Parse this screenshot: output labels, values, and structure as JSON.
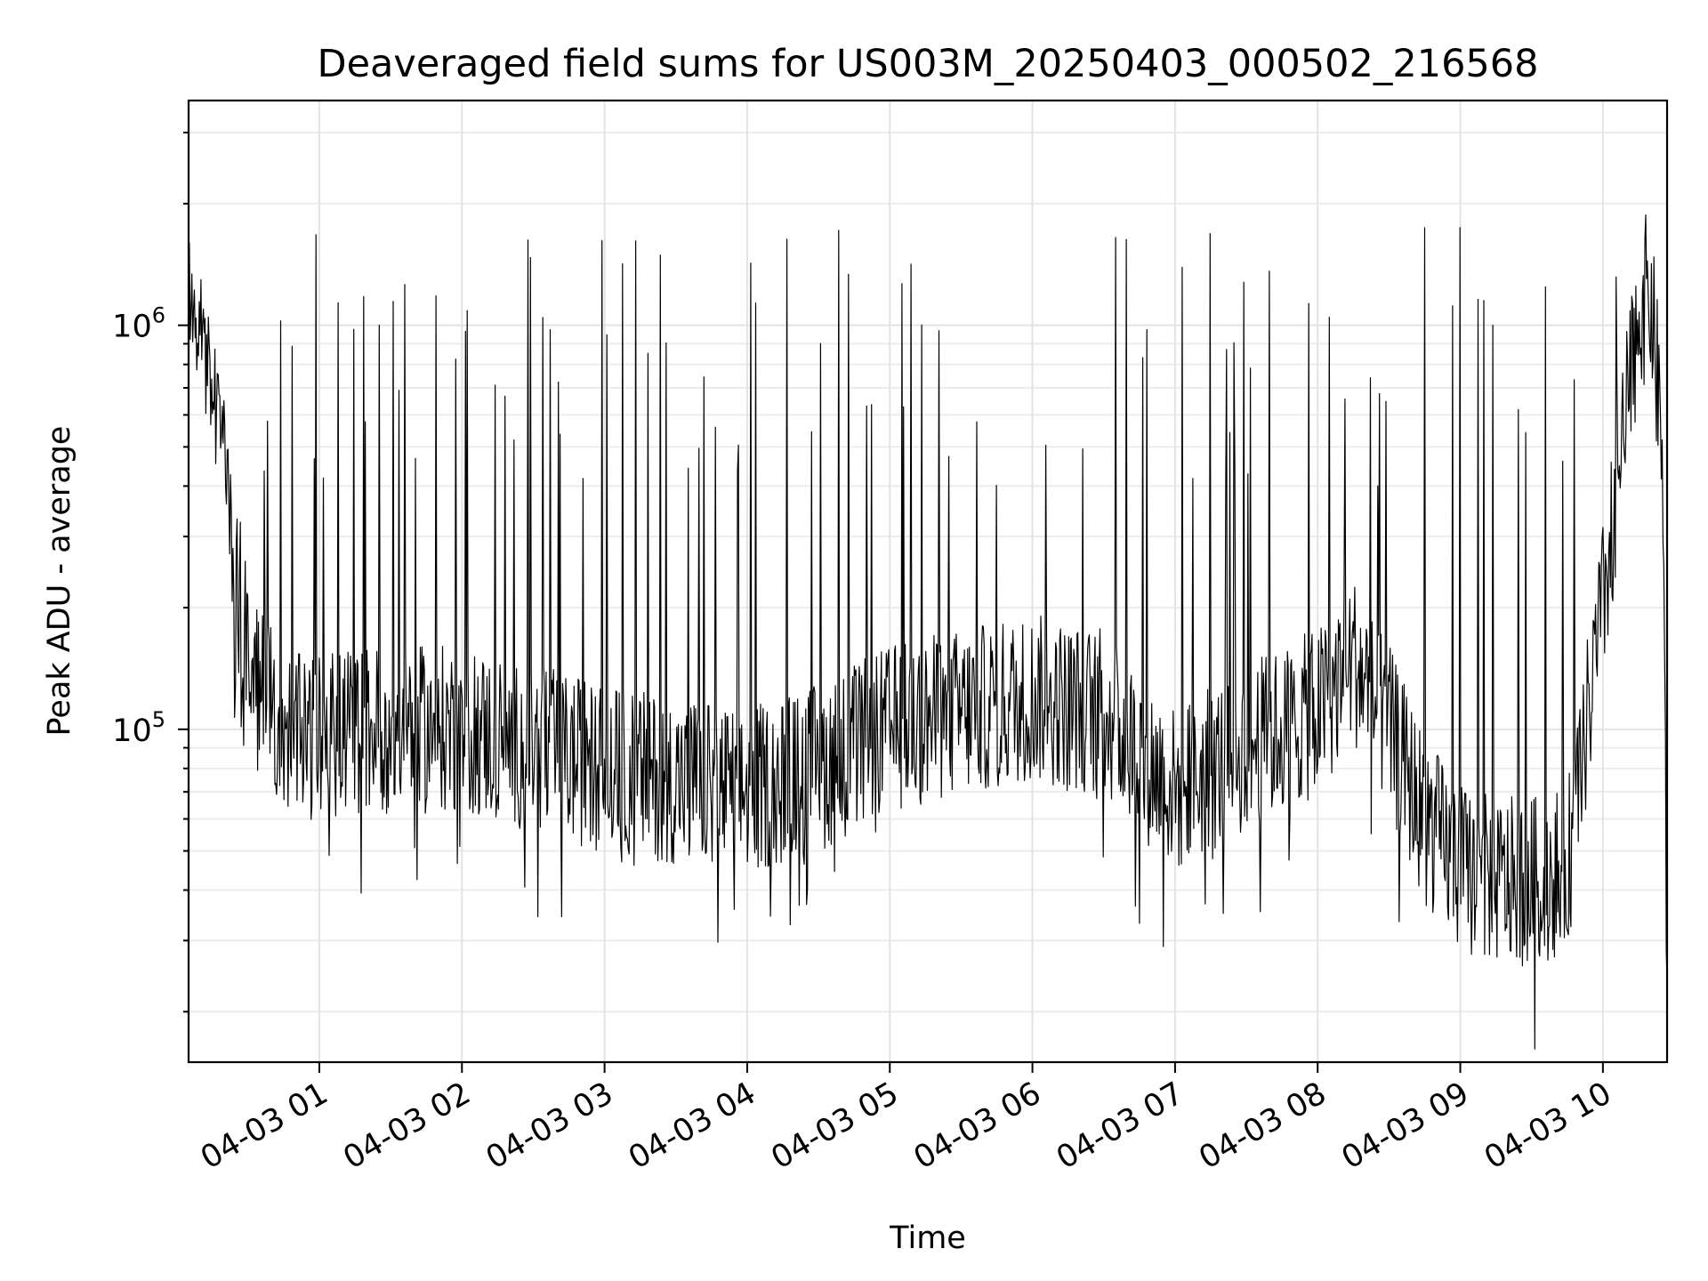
{
  "chart_data": {
    "type": "line",
    "title": "Deaveraged field sums for US003M_20250403_000502_216568",
    "xlabel": "Time",
    "ylabel": "Peak ADU - average",
    "yscale": "log",
    "grid": "on (major and minor)",
    "legend": "none",
    "line_color": "#000000",
    "xlim": [
      "2025-04-03 00:05",
      "2025-04-03 10:27"
    ],
    "ylim": [
      15000,
      3600000
    ],
    "x_tick_labels": [
      "04-03 01",
      "04-03 02",
      "04-03 03",
      "04-03 04",
      "04-03 05",
      "04-03 06",
      "04-03 07",
      "04-03 08",
      "04-03 09",
      "04-03 10"
    ],
    "x_tick_values": [
      "2025-04-03 01:00",
      "2025-04-03 02:00",
      "2025-04-03 03:00",
      "2025-04-03 04:00",
      "2025-04-03 05:00",
      "2025-04-03 06:00",
      "2025-04-03 07:00",
      "2025-04-03 08:00",
      "2025-04-03 09:00",
      "2025-04-03 10:00"
    ],
    "y_ticks": [
      {
        "value": 100000,
        "base": "10",
        "exp": "5"
      },
      {
        "value": 1000000,
        "base": "10",
        "exp": "6"
      }
    ],
    "series": [
      {
        "x": [
          "2025-04-03 00:05",
          "2025-04-03 00:10",
          "2025-04-03 00:15",
          "2025-04-03 00:20",
          "2025-04-03 00:25",
          "2025-04-03 00:30",
          "2025-04-03 00:40",
          "2025-04-03 00:50",
          "2025-04-03 01:00",
          "2025-04-03 01:15",
          "2025-04-03 01:30",
          "2025-04-03 01:45",
          "2025-04-03 02:00",
          "2025-04-03 02:30",
          "2025-04-03 03:00",
          "2025-04-03 03:30",
          "2025-04-03 04:00",
          "2025-04-03 04:30",
          "2025-04-03 05:00",
          "2025-04-03 05:30",
          "2025-04-03 06:00",
          "2025-04-03 06:30",
          "2025-04-03 07:00",
          "2025-04-03 07:30",
          "2025-04-03 08:00",
          "2025-04-03 08:15",
          "2025-04-03 08:30",
          "2025-04-03 08:45",
          "2025-04-03 09:00",
          "2025-04-03 09:15",
          "2025-04-03 09:30",
          "2025-04-03 09:45",
          "2025-04-03 10:00",
          "2025-04-03 10:10",
          "2025-04-03 10:15",
          "2025-04-03 10:20",
          "2025-04-03 10:25",
          "2025-04-03 10:27"
        ],
        "values": [
          1300000,
          1000000,
          700000,
          500000,
          250000,
          150000,
          110000,
          95000,
          95000,
          100000,
          100000,
          100000,
          100000,
          90000,
          80000,
          75000,
          70000,
          80000,
          100000,
          110000,
          120000,
          110000,
          70000,
          90000,
          110000,
          150000,
          100000,
          60000,
          45000,
          42000,
          42000,
          45000,
          200000,
          600000,
          1100000,
          1200000,
          500000,
          25000
        ]
      }
    ]
  }
}
